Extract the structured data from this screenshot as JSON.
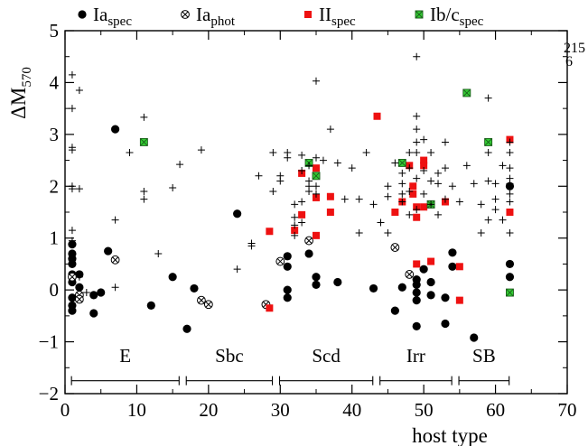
{
  "chart_data": {
    "type": "scatter",
    "xlabel": "host type",
    "ylabel": "ΔM570",
    "xlim": [
      0,
      70
    ],
    "ylim": [
      -2,
      5
    ],
    "xticks": [
      0,
      10,
      20,
      30,
      40,
      50,
      60,
      70
    ],
    "yticks": [
      -2,
      -1,
      0,
      1,
      2,
      3,
      4,
      5
    ],
    "corner_note": [
      "215",
      "6"
    ],
    "legend": [
      {
        "key": "ia_spec",
        "base": "Ia",
        "sub": "spec",
        "marker": "filled-circle",
        "color": "#000000"
      },
      {
        "key": "ia_phot",
        "base": "Ia",
        "sub": "phot",
        "marker": "circle-x",
        "color": "#000000"
      },
      {
        "key": "ii_spec",
        "base": "II",
        "sub": "spec",
        "marker": "filled-square",
        "color": "#ee1111"
      },
      {
        "key": "ibc_spec",
        "base": "Ib/c",
        "sub": "spec",
        "marker": "square-x",
        "color": "#33cc33"
      }
    ],
    "host_groups": [
      {
        "label": "E",
        "start": 1,
        "end": 16
      },
      {
        "label": "Sbc",
        "start": 17,
        "end": 29
      },
      {
        "label": "Scd",
        "start": 30,
        "end": 43
      },
      {
        "label": "Irr",
        "start": 44,
        "end": 54
      },
      {
        "label": "SB",
        "start": 55,
        "end": 62
      }
    ],
    "series": [
      {
        "key": "ia_spec",
        "points": [
          [
            1,
            0.88
          ],
          [
            1,
            0.7
          ],
          [
            1,
            0.6
          ],
          [
            1,
            0.5
          ],
          [
            1,
            0.3
          ],
          [
            1,
            0.15
          ],
          [
            1,
            -0.15
          ],
          [
            1,
            -0.3
          ],
          [
            1,
            -0.4
          ],
          [
            2,
            0.3
          ],
          [
            2,
            0.05
          ],
          [
            2,
            -0.1
          ],
          [
            4,
            -0.45
          ],
          [
            4,
            -0.1
          ],
          [
            5,
            -0.05
          ],
          [
            6,
            0.75
          ],
          [
            7,
            3.1
          ],
          [
            12,
            -0.3
          ],
          [
            15,
            0.25
          ],
          [
            17,
            -0.75
          ],
          [
            18,
            0.03
          ],
          [
            24,
            1.47
          ],
          [
            31,
            0.65
          ],
          [
            31,
            0.45
          ],
          [
            31,
            0.0
          ],
          [
            31,
            -0.15
          ],
          [
            34,
            0.7
          ],
          [
            35,
            0.25
          ],
          [
            35,
            0.1
          ],
          [
            38,
            0.15
          ],
          [
            43,
            0.03
          ],
          [
            46,
            -0.4
          ],
          [
            47,
            0.05
          ],
          [
            49,
            0.2
          ],
          [
            49,
            0.1
          ],
          [
            49,
            -0.05
          ],
          [
            49,
            -0.2
          ],
          [
            49,
            -0.7
          ],
          [
            50,
            0.4
          ],
          [
            51,
            -0.1
          ],
          [
            51,
            0.15
          ],
          [
            53,
            -0.15
          ],
          [
            53,
            -0.65
          ],
          [
            54,
            0.45
          ],
          [
            54,
            0.72
          ],
          [
            57,
            -0.92
          ],
          [
            62,
            2.0
          ],
          [
            62,
            0.5
          ],
          [
            62,
            0.25
          ]
        ]
      },
      {
        "key": "ia_phot",
        "points": [
          [
            1,
            0.25
          ],
          [
            2,
            -0.1
          ],
          [
            2,
            -0.18
          ],
          [
            7,
            0.58
          ],
          [
            19,
            -0.2
          ],
          [
            20,
            -0.28
          ],
          [
            28,
            -0.28
          ],
          [
            30,
            0.55
          ],
          [
            34,
            0.95
          ],
          [
            46,
            0.82
          ],
          [
            48,
            0.3
          ]
        ]
      },
      {
        "key": "ii_spec",
        "points": [
          [
            28.5,
            1.13
          ],
          [
            28.5,
            -0.35
          ],
          [
            32,
            1.15
          ],
          [
            33,
            2.25
          ],
          [
            33,
            1.45
          ],
          [
            35,
            2.35
          ],
          [
            35,
            1.78
          ],
          [
            35,
            1.05
          ],
          [
            37,
            1.8
          ],
          [
            37,
            1.5
          ],
          [
            43.5,
            3.35
          ],
          [
            46,
            1.5
          ],
          [
            47,
            1.7
          ],
          [
            48,
            2.4
          ],
          [
            48.5,
            1.85
          ],
          [
            48.5,
            2.0
          ],
          [
            49,
            1.6
          ],
          [
            49,
            1.4
          ],
          [
            49,
            0.5
          ],
          [
            50,
            2.5
          ],
          [
            50,
            2.4
          ],
          [
            50,
            1.6
          ],
          [
            51,
            0.55
          ],
          [
            53,
            1.7
          ],
          [
            55,
            0.45
          ],
          [
            55,
            -0.2
          ],
          [
            62,
            2.9
          ],
          [
            62,
            1.5
          ]
        ]
      },
      {
        "key": "ibc_spec",
        "points": [
          [
            11,
            2.85
          ],
          [
            34,
            2.45
          ],
          [
            35,
            2.2
          ],
          [
            47,
            2.45
          ],
          [
            51,
            1.65
          ],
          [
            56,
            3.8
          ],
          [
            59,
            2.85
          ],
          [
            62,
            -0.05
          ]
        ]
      },
      {
        "key": "other",
        "points": [
          [
            1,
            4.15
          ],
          [
            1,
            3.5
          ],
          [
            1,
            2.75
          ],
          [
            1,
            2.7
          ],
          [
            1,
            2.0
          ],
          [
            1,
            1.95
          ],
          [
            1,
            1.15
          ],
          [
            1,
            0.95
          ],
          [
            2,
            3.85
          ],
          [
            2,
            1.95
          ],
          [
            2,
            0.25
          ],
          [
            3,
            -0.05
          ],
          [
            7,
            1.35
          ],
          [
            7,
            0.05
          ],
          [
            9,
            2.65
          ],
          [
            11,
            3.33
          ],
          [
            11,
            1.9
          ],
          [
            11,
            1.75
          ],
          [
            13,
            0.7
          ],
          [
            15,
            1.97
          ],
          [
            16,
            2.42
          ],
          [
            19,
            2.7
          ],
          [
            24,
            0.4
          ],
          [
            26,
            0.85
          ],
          [
            26,
            0.9
          ],
          [
            27,
            2.2
          ],
          [
            29,
            1.9
          ],
          [
            29,
            2.65
          ],
          [
            30,
            2.2
          ],
          [
            30,
            2.1
          ],
          [
            31,
            2.65
          ],
          [
            31,
            2.55
          ],
          [
            32,
            1.65
          ],
          [
            32,
            1.4
          ],
          [
            32,
            1.25
          ],
          [
            32,
            1.05
          ],
          [
            33,
            2.6
          ],
          [
            33,
            2.3
          ],
          [
            33,
            1.7
          ],
          [
            33,
            1.3
          ],
          [
            34,
            2.4
          ],
          [
            34,
            2.1
          ],
          [
            34,
            2.0
          ],
          [
            34,
            1.9
          ],
          [
            35,
            4.03
          ],
          [
            35,
            2.55
          ],
          [
            35,
            2.0
          ],
          [
            35,
            1.85
          ],
          [
            36,
            2.5
          ],
          [
            37,
            3.1
          ],
          [
            38,
            2.45
          ],
          [
            39,
            1.75
          ],
          [
            40,
            2.35
          ],
          [
            41,
            1.75
          ],
          [
            41,
            1.1
          ],
          [
            42,
            2.65
          ],
          [
            43,
            1.65
          ],
          [
            44,
            1.3
          ],
          [
            45,
            2.0
          ],
          [
            45,
            1.8
          ],
          [
            45,
            1.1
          ],
          [
            46,
            2.45
          ],
          [
            47,
            2.25
          ],
          [
            47,
            2.05
          ],
          [
            47,
            1.85
          ],
          [
            47,
            1.7
          ],
          [
            48,
            2.65
          ],
          [
            48,
            2.35
          ],
          [
            48,
            1.9
          ],
          [
            48,
            1.45
          ],
          [
            49,
            4.5
          ],
          [
            49,
            3.35
          ],
          [
            49,
            3.1
          ],
          [
            49,
            2.85
          ],
          [
            49,
            2.65
          ],
          [
            49,
            2.15
          ],
          [
            49,
            1.55
          ],
          [
            50,
            2.9
          ],
          [
            50,
            2.3
          ],
          [
            50,
            1.85
          ],
          [
            51,
            2.65
          ],
          [
            51,
            2.1
          ],
          [
            51,
            1.65
          ],
          [
            52,
            2.25
          ],
          [
            52,
            2.05
          ],
          [
            52,
            1.45
          ],
          [
            53,
            2.85
          ],
          [
            53,
            2.35
          ],
          [
            53,
            1.75
          ],
          [
            54,
            2.0
          ],
          [
            55,
            1.7
          ],
          [
            56,
            2.4
          ],
          [
            57,
            2.05
          ],
          [
            58,
            1.65
          ],
          [
            58,
            1.1
          ],
          [
            59,
            3.7
          ],
          [
            59,
            2.65
          ],
          [
            59,
            2.1
          ],
          [
            59,
            1.35
          ],
          [
            60,
            2.05
          ],
          [
            60,
            1.75
          ],
          [
            60,
            1.55
          ],
          [
            61,
            2.4
          ],
          [
            61,
            1.35
          ],
          [
            62,
            2.85
          ],
          [
            62,
            2.65
          ],
          [
            62,
            2.35
          ],
          [
            62,
            2.15
          ],
          [
            62,
            2.05
          ],
          [
            62,
            1.85
          ],
          [
            62,
            1.7
          ],
          [
            62,
            1.1
          ]
        ]
      }
    ]
  }
}
